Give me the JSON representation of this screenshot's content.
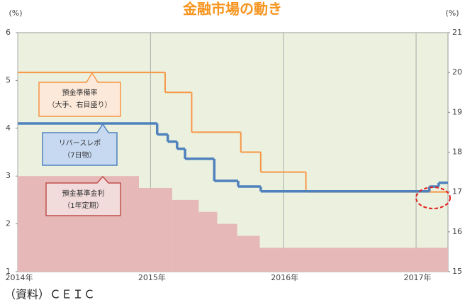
{
  "chart_data": {
    "type": "step",
    "title": "金融市場の動き",
    "y_unit": "(%)",
    "y2_unit": "(%)",
    "source": "（資料）ＣＥＩＣ",
    "xlim": [
      2014,
      2017.24
    ],
    "xticks": [
      {
        "value": 2014,
        "label": "2014年"
      },
      {
        "value": 2015,
        "label": "2015年"
      },
      {
        "value": 2016,
        "label": "2016年"
      },
      {
        "value": 2017,
        "label": "2017年"
      }
    ],
    "ylim": [
      1,
      6
    ],
    "yticks": [
      1,
      2,
      3,
      4,
      5,
      6
    ],
    "y2lim": [
      15,
      21
    ],
    "y2ticks": [
      15,
      16,
      17,
      18,
      19,
      20,
      21
    ],
    "grid": true,
    "series": [
      {
        "name": "預金準備率（大手、右目盛り）",
        "label_lines": [
          "預金準備率",
          "（大手、右目盛り）"
        ],
        "axis": "y2",
        "color": "#f79646",
        "style": "line",
        "x": [
          2014,
          2015.11,
          2015.31,
          2015.68,
          2015.83,
          2016.17,
          2017.24
        ],
        "values": [
          20.0,
          19.5,
          18.5,
          18.0,
          17.5,
          17.0,
          17.0
        ]
      },
      {
        "name": "リバースレポ（7日物）",
        "label_lines": [
          "リバースレポ",
          "（7日物）"
        ],
        "color": "#4f81bd",
        "style": "line",
        "x": [
          2014,
          2015.05,
          2015.13,
          2015.2,
          2015.26,
          2015.48,
          2015.66,
          2015.83,
          2017.1,
          2017.17,
          2017.24
        ],
        "values": [
          4.1,
          3.87,
          3.72,
          3.57,
          3.36,
          2.9,
          2.78,
          2.68,
          2.78,
          2.86,
          2.86
        ]
      },
      {
        "name": "預金基準金利（1年定期）",
        "label_lines": [
          "預金基準金利",
          "（1年定期）"
        ],
        "color": "#e6b8b7",
        "style": "area",
        "x": [
          2014,
          2014.91,
          2015.16,
          2015.36,
          2015.5,
          2015.65,
          2015.82,
          2017.24
        ],
        "values": [
          3.0,
          2.75,
          2.5,
          2.25,
          2.0,
          1.75,
          1.5,
          1.5
        ]
      }
    ]
  }
}
